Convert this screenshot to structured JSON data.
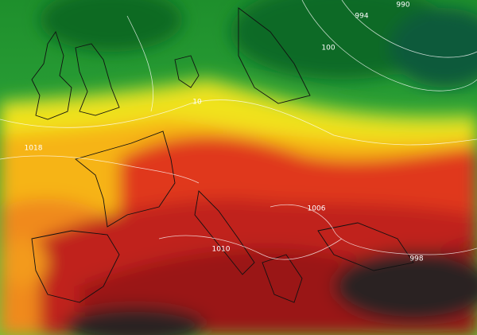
{
  "map": {
    "isobar_labels": [
      "994",
      "990",
      "100",
      "10",
      "1018",
      "1006",
      "1010",
      "998"
    ]
  }
}
